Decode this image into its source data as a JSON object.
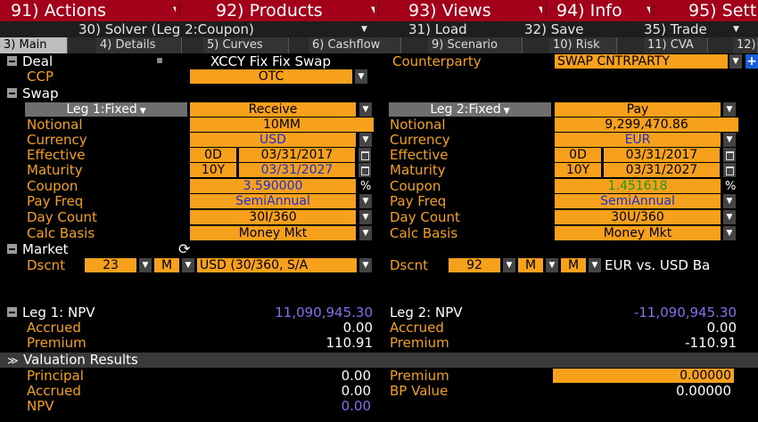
{
  "menu": {
    "items": [
      {
        "label": "91) Actions"
      },
      {
        "label": "92) Products"
      },
      {
        "label": "93) Views"
      },
      {
        "label": "94) Info"
      },
      {
        "label": "95) Sett"
      }
    ]
  },
  "subbar": {
    "solver": "30) Solver (Leg 2:Coupon)",
    "load": "31) Load",
    "save": "32) Save",
    "trade": "35) Trade"
  },
  "tabs": [
    {
      "label": "3) Main"
    },
    {
      "label": "4) Details"
    },
    {
      "label": "5) Curves"
    },
    {
      "label": "6) Cashflow"
    },
    {
      "label": "9) Scenario"
    },
    {
      "label": "10) Risk"
    },
    {
      "label": "11) CVA"
    },
    {
      "label": "12)"
    }
  ],
  "deal": {
    "header": "Deal",
    "name": "XCCY Fix Fix Swap",
    "counterparty_label": "Counterparty",
    "counterparty": "SWAP CNTRPARTY",
    "ccp_label": "CCP",
    "ccp": "OTC"
  },
  "swap": {
    "header": "Swap",
    "labels": {
      "notional": "Notional",
      "currency": "Currency",
      "effective": "Effective",
      "maturity": "Maturity",
      "coupon": "Coupon",
      "pay_freq": "Pay Freq",
      "day_count": "Day Count",
      "calc_basis": "Calc Basis"
    },
    "leg1": {
      "type": "Leg 1:Fixed",
      "direction": "Receive",
      "notional": "10MM",
      "currency": "USD",
      "effective_tenor": "0D",
      "effective": "03/31/2017",
      "maturity_tenor": "10Y",
      "maturity": "03/31/2027",
      "coupon": "3.590000",
      "coupon_unit": "%",
      "pay_freq": "SemiAnnual",
      "day_count": "30I/360",
      "calc_basis": "Money Mkt"
    },
    "leg2": {
      "type": "Leg 2:Fixed",
      "direction": "Pay",
      "notional": "9,299,470.86",
      "currency": "EUR",
      "effective_tenor": "0D",
      "effective": "03/31/2017",
      "maturity_tenor": "10Y",
      "maturity": "03/31/2027",
      "coupon": "1.451618",
      "coupon_unit": "%",
      "pay_freq": "SemiAnnual",
      "day_count": "30U/360",
      "calc_basis": "Money Mkt"
    }
  },
  "market": {
    "header": "Market",
    "dscnt_label": "Dscnt",
    "leg1": {
      "curve_num": "23",
      "m1": "M",
      "curve": "USD (30/360, S/A"
    },
    "leg2": {
      "curve_num": "92",
      "m1": "M",
      "m2": "M",
      "curve": "EUR vs. USD Ba"
    }
  },
  "npv": {
    "leg1_label": "Leg 1: NPV",
    "leg1_npv": "11,090,945.30",
    "leg2_label": "Leg 2: NPV",
    "leg2_npv": "-11,090,945.30",
    "accrued_label": "Accrued",
    "leg1_accrued": "0.00",
    "leg2_accrued": "0.00",
    "premium_label": "Premium",
    "leg1_premium": "110.91",
    "leg2_premium": "-110.91"
  },
  "valuation": {
    "header": "Valuation Results",
    "principal_label": "Principal",
    "principal": "0.00",
    "accrued_label": "Accrued",
    "accrued": "0.00",
    "npv_label": "NPV",
    "npv": "0.00",
    "premium_label": "Premium",
    "premium": "0.00000",
    "bp_label": "BP Value",
    "bp_value": "0.00000"
  },
  "colors": {
    "menu_bg": "#a3001a",
    "field_orange": "#f7a01c",
    "label_orange": "#f7a01c",
    "blue_text": "#1a2fd6",
    "green_text": "#1e9a1e",
    "purple_text": "#8a6cf0"
  }
}
